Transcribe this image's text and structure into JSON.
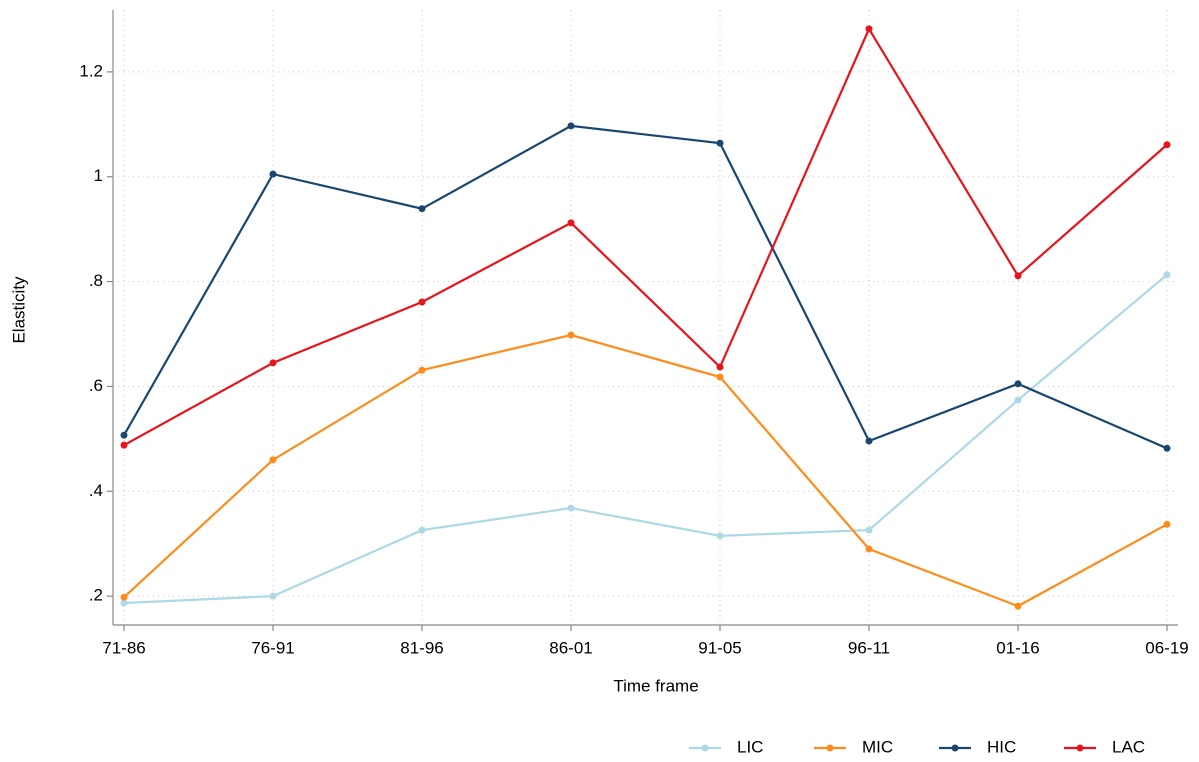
{
  "chart_data": {
    "type": "line",
    "x_label": "Time frame",
    "y_label": "Elasticity",
    "categories": [
      "71-86",
      "76-91",
      "81-96",
      "86-01",
      "91-05",
      "96-11",
      "01-16",
      "06-19"
    ],
    "series": [
      {
        "name": "LIC",
        "color": "#add8e6",
        "values": [
          0.187,
          0.2,
          0.326,
          0.368,
          0.315,
          0.326,
          0.574,
          0.813
        ]
      },
      {
        "name": "MIC",
        "color": "#ff8c1a",
        "values": [
          0.198,
          0.46,
          0.631,
          0.698,
          0.618,
          0.29,
          0.181,
          0.337
        ]
      },
      {
        "name": "HIC",
        "color": "#1a476f",
        "values": [
          0.507,
          1.005,
          0.939,
          1.097,
          1.064,
          0.496,
          0.605,
          0.482
        ]
      },
      {
        "name": "LAC",
        "color": "#e8141b",
        "values": [
          0.488,
          0.645,
          0.761,
          0.912,
          0.637,
          1.282,
          0.811,
          1.061
        ]
      }
    ],
    "ylim": [
      0.145,
      1.318
    ],
    "yticks": [
      {
        "value": 0.2,
        "label": ".2"
      },
      {
        "value": 0.4,
        "label": ".4"
      },
      {
        "value": 0.6,
        "label": ".6"
      },
      {
        "value": 0.8,
        "label": ".8"
      },
      1,
      1.2
    ],
    "grid": true,
    "legend": "bottom-right"
  }
}
